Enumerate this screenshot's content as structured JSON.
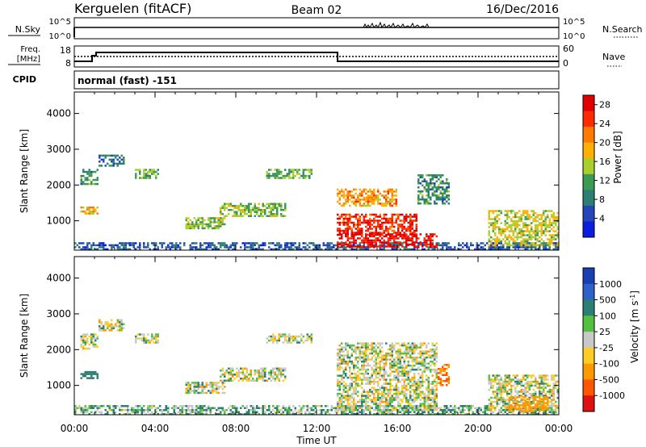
{
  "header": {
    "station": "Kerguelen (fitACF)",
    "beam": "Beam 02",
    "date": "16/Dec/2016"
  },
  "status_panels": {
    "nsky": {
      "label": "N.Sky",
      "ticks": [
        "10^5",
        "10^0"
      ]
    },
    "nsearch": {
      "label": "N.Search",
      "ticks": [
        "10^5",
        "10^0"
      ]
    },
    "freq": {
      "label_line1": "Freq.",
      "label_line2": "[MHz]",
      "ticks": [
        "18",
        "8"
      ]
    },
    "nave": {
      "label": "Nave",
      "ticks": [
        "60",
        "0"
      ]
    },
    "cpid": {
      "label": "CPID",
      "mode_text": "normal (fast) -151"
    }
  },
  "colors": {
    "power_scale": [
      "#0a1ee0",
      "#2545b8",
      "#2e7f73",
      "#3c9a52",
      "#a9cf2c",
      "#ffb000",
      "#ff7a00",
      "#ff2a00",
      "#e00000"
    ],
    "velocity_scale": [
      "#1a3fb5",
      "#2f62c8",
      "#2e7f73",
      "#55c040",
      "#c8c8c8",
      "#ffcc22",
      "#ff9900",
      "#ff5500",
      "#e01010"
    ],
    "ground_scatter": "#c8c8c8"
  },
  "chart_data": [
    {
      "type": "heatmap",
      "title": "Power",
      "xlabel": "Time UT",
      "ylabel": "Slant Range [km]",
      "xlim": [
        "00:00",
        "24:00"
      ],
      "ylim": [
        180,
        4600
      ],
      "x_ticks": [
        "00:00",
        "04:00",
        "08:00",
        "12:00",
        "16:00",
        "20:00",
        "00:00"
      ],
      "y_ticks": [
        "1000",
        "2000",
        "3000",
        "4000"
      ],
      "colorbar": {
        "label": "Power [dB]",
        "ticks": [
          "4",
          "8",
          "12",
          "16",
          "20",
          "24",
          "28"
        ],
        "range": [
          0,
          30
        ]
      },
      "regions": [
        {
          "t": [
            0.0,
            24.0
          ],
          "r": [
            200,
            400
          ],
          "value": 6
        },
        {
          "t": [
            0.3,
            1.2
          ],
          "r": [
            2000,
            2450
          ],
          "value": 10
        },
        {
          "t": [
            0.3,
            1.2
          ],
          "r": [
            1200,
            1400
          ],
          "value": 18
        },
        {
          "t": [
            1.2,
            2.5
          ],
          "r": [
            2550,
            2850
          ],
          "value": 8
        },
        {
          "t": [
            3.0,
            4.2
          ],
          "r": [
            2200,
            2450
          ],
          "value": 12
        },
        {
          "t": [
            5.5,
            7.5
          ],
          "r": [
            800,
            1100
          ],
          "value": 14
        },
        {
          "t": [
            7.2,
            10.5
          ],
          "r": [
            1150,
            1500
          ],
          "value": 14
        },
        {
          "t": [
            9.5,
            11.8
          ],
          "r": [
            2200,
            2450
          ],
          "value": 12
        },
        {
          "t": [
            13.0,
            16.0
          ],
          "r": [
            1400,
            1900
          ],
          "value": 20
        },
        {
          "t": [
            13.0,
            17.0
          ],
          "r": [
            600,
            1200
          ],
          "value": 26
        },
        {
          "t": [
            13.0,
            18.0
          ],
          "r": [
            300,
            650
          ],
          "value": 28
        },
        {
          "t": [
            17.0,
            18.6
          ],
          "r": [
            1500,
            2300
          ],
          "value": 10
        },
        {
          "t": [
            20.5,
            24.0
          ],
          "r": [
            300,
            1300
          ],
          "value": 16
        }
      ]
    },
    {
      "type": "heatmap",
      "title": "Velocity",
      "xlabel": "Time UT",
      "ylabel": "Slant Range [km]",
      "xlim": [
        "00:00",
        "24:00"
      ],
      "ylim": [
        180,
        4600
      ],
      "x_ticks": [
        "00:00",
        "04:00",
        "08:00",
        "12:00",
        "16:00",
        "20:00",
        "00:00"
      ],
      "y_ticks": [
        "1000",
        "2000",
        "3000",
        "4000"
      ],
      "colorbar": {
        "label": "Velocity [m s-1]",
        "ticks": [
          "1000",
          "500",
          "100",
          "25",
          "-25",
          "-100",
          "-500",
          "-1000"
        ]
      },
      "regions": [
        {
          "t": [
            0.0,
            24.0
          ],
          "r": [
            200,
            450
          ],
          "value": 50
        },
        {
          "t": [
            0.3,
            1.2
          ],
          "r": [
            2000,
            2450
          ],
          "value": 0
        },
        {
          "t": [
            0.3,
            1.2
          ],
          "r": [
            1200,
            1400
          ],
          "value": 150
        },
        {
          "t": [
            1.2,
            2.5
          ],
          "r": [
            2550,
            2850
          ],
          "value": 0
        },
        {
          "t": [
            3.0,
            4.2
          ],
          "r": [
            2200,
            2450
          ],
          "value": 0
        },
        {
          "t": [
            5.5,
            7.5
          ],
          "r": [
            800,
            1100
          ],
          "value": 0
        },
        {
          "t": [
            7.2,
            10.5
          ],
          "r": [
            1150,
            1500
          ],
          "value": 0
        },
        {
          "t": [
            9.5,
            11.8
          ],
          "r": [
            2200,
            2450
          ],
          "value": 0
        },
        {
          "t": [
            13.0,
            18.0
          ],
          "r": [
            300,
            2200
          ],
          "value": 0
        },
        {
          "t": [
            18.0,
            18.6
          ],
          "r": [
            1000,
            1600
          ],
          "value": -300
        },
        {
          "t": [
            20.5,
            24.0
          ],
          "r": [
            300,
            1300
          ],
          "value": 0
        },
        {
          "t": [
            21.5,
            23.5
          ],
          "r": [
            250,
            700
          ],
          "value": -200
        }
      ]
    }
  ],
  "footer": {
    "x_axis_label": "Time UT"
  }
}
